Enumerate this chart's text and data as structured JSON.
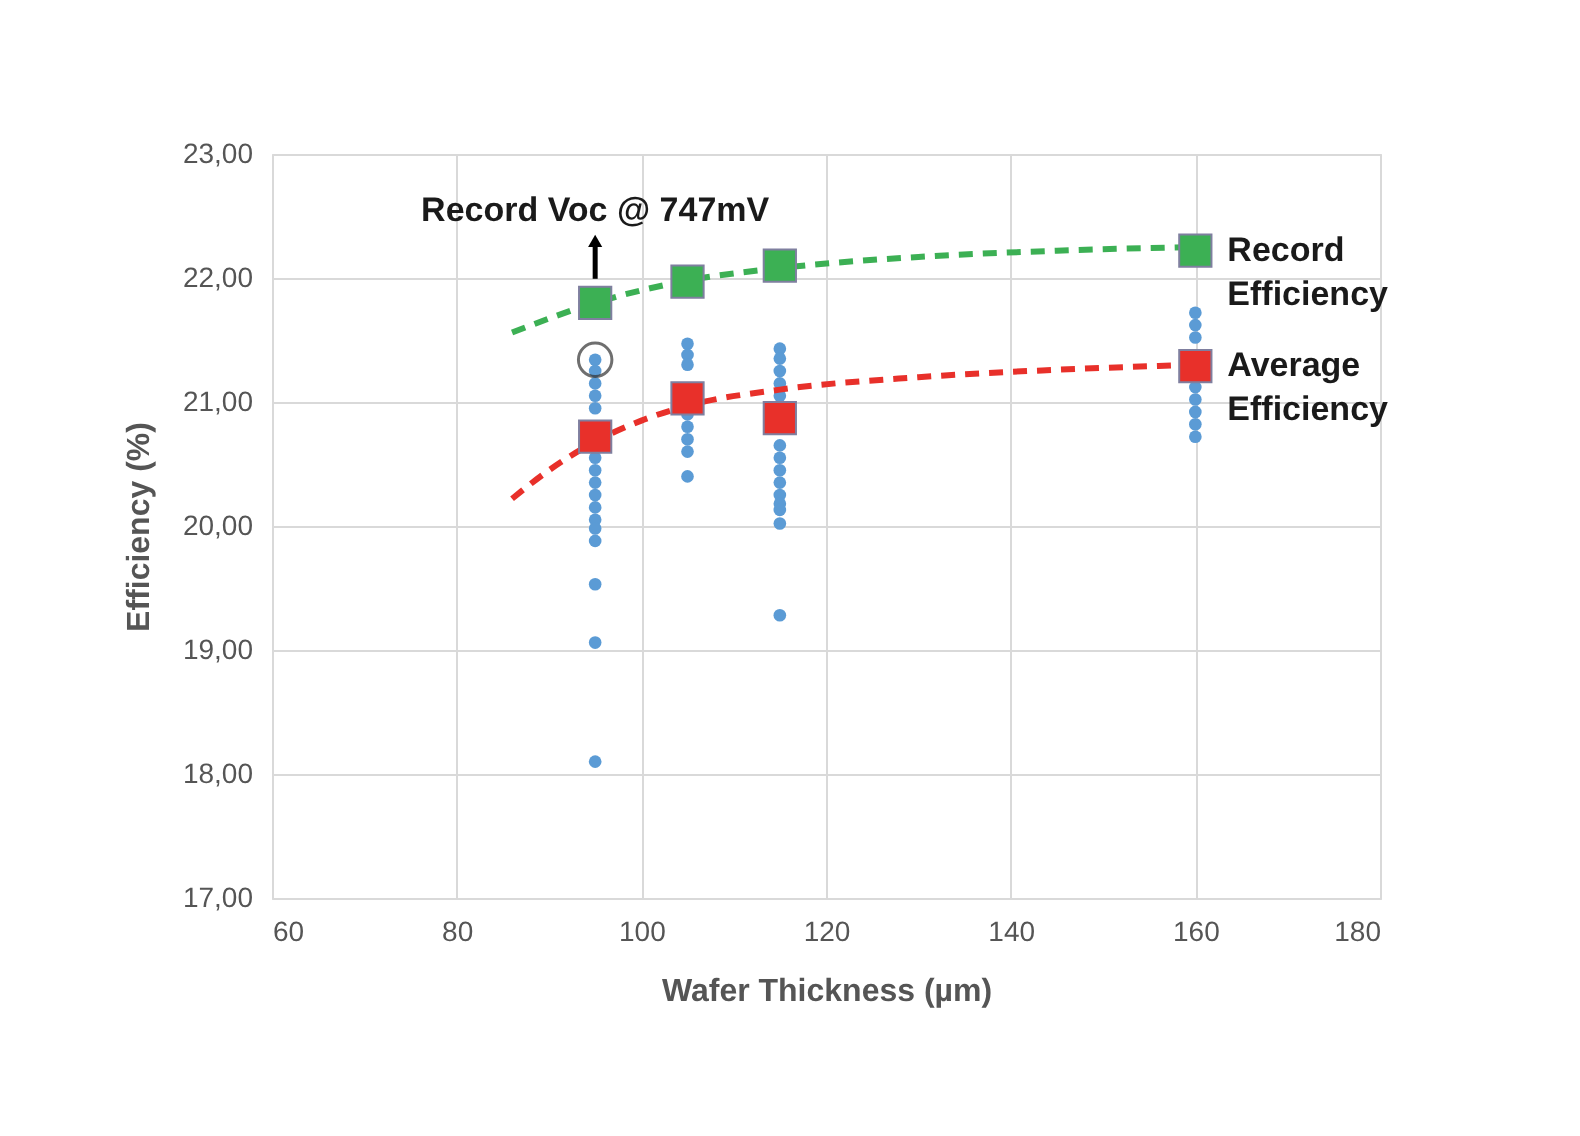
{
  "chart_data": {
    "type": "scatter",
    "xlabel": "Wafer Thickness (µm)",
    "ylabel": "Efficiency (%)",
    "xlim": [
      60,
      180
    ],
    "xticks": [
      60,
      80,
      100,
      120,
      140,
      160,
      180
    ],
    "ylim": [
      17,
      23
    ],
    "yticks": [
      {
        "value": 17,
        "label": "17,00"
      },
      {
        "value": 18,
        "label": "18,00"
      },
      {
        "value": 19,
        "label": "19,00"
      },
      {
        "value": 20,
        "label": "20,00"
      },
      {
        "value": 21,
        "label": "21,00"
      },
      {
        "value": 22,
        "label": "22,00"
      },
      {
        "value": 23,
        "label": "23,00"
      }
    ],
    "grid": true,
    "series": [
      {
        "marker": "circle",
        "color": "#5b9bd5",
        "x": [
          95,
          95,
          95,
          95,
          95,
          95,
          95,
          95,
          95,
          95,
          95,
          95,
          95,
          95,
          95,
          95,
          105,
          105,
          105,
          105,
          105,
          105,
          105,
          105,
          115,
          115,
          115,
          115,
          115,
          115,
          115,
          115,
          115,
          115,
          115,
          115,
          115,
          115,
          160,
          160,
          160,
          160,
          160,
          160,
          160,
          160
        ],
        "values": [
          21.34,
          21.25,
          21.15,
          21.05,
          20.95,
          20.55,
          20.45,
          20.35,
          20.25,
          20.15,
          20.05,
          19.98,
          19.88,
          19.53,
          19.06,
          18.1,
          21.47,
          21.38,
          21.3,
          20.9,
          20.8,
          20.7,
          20.6,
          20.4,
          21.43,
          21.35,
          21.25,
          21.15,
          21.05,
          20.65,
          20.55,
          20.45,
          20.35,
          20.25,
          20.18,
          20.13,
          20.02,
          19.28,
          21.72,
          21.62,
          21.52,
          21.12,
          21.02,
          20.92,
          20.82,
          20.72
        ]
      },
      {
        "type": "line",
        "line_style": "dashed",
        "color": "#3cb054",
        "x": [
          86,
          95,
          105,
          115,
          130,
          145,
          160
        ],
        "values": [
          21.56,
          21.8,
          21.98,
          22.08,
          22.17,
          22.22,
          22.25
        ]
      },
      {
        "type": "line",
        "line_style": "dashed",
        "color": "#e8302a",
        "x": [
          86,
          90,
          95,
          100,
          105,
          115,
          130,
          145,
          160
        ],
        "values": [
          20.22,
          20.45,
          20.68,
          20.85,
          20.97,
          21.1,
          21.2,
          21.26,
          21.3
        ]
      },
      {
        "type": "scatter",
        "marker": "square",
        "name": "Record Efficiency",
        "color": "#3cb054",
        "x": [
          95,
          105,
          115,
          160
        ],
        "values": [
          21.8,
          21.97,
          22.1,
          22.22
        ]
      },
      {
        "type": "scatter",
        "marker": "square",
        "name": "Average Efficiency",
        "color": "#e8302a",
        "x": [
          95,
          105,
          115,
          160
        ],
        "values": [
          20.72,
          21.03,
          20.87,
          21.29
        ]
      }
    ],
    "annotations": [
      {
        "text": "Record Voc @ 747mV",
        "x": 95,
        "y": 21.8
      }
    ]
  }
}
